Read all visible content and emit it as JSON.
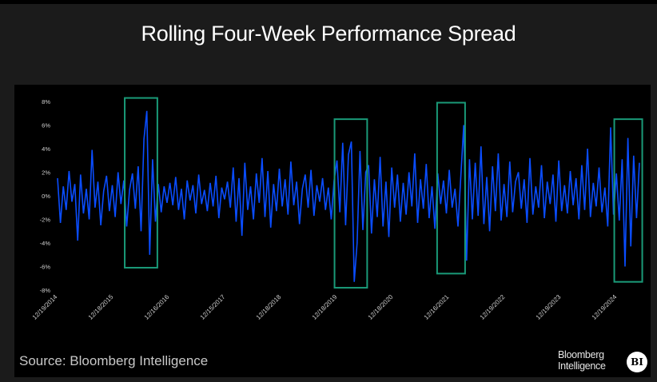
{
  "chart_data": {
    "type": "line",
    "title": "Rolling Four-Week Performance Spread",
    "xlabel": "",
    "ylabel": "",
    "ylim": [
      -8,
      8
    ],
    "xlim": [
      "2014-12-19",
      "2025-05"
    ],
    "grid": false,
    "legend": "none",
    "y_ticks": [
      "8%",
      "6%",
      "4%",
      "2%",
      "0%",
      "-2%",
      "-4%",
      "-6%",
      "-8%"
    ],
    "y_tick_values": [
      8,
      6,
      4,
      2,
      0,
      -2,
      -4,
      -6,
      -8
    ],
    "x_ticks": [
      "12/19/2014",
      "12/18/2015",
      "12/16/2016",
      "12/15/2017",
      "12/18/2018",
      "12/18/2019",
      "12/18/2020",
      "12/16/2021",
      "12/19/2022",
      "12/19/2023",
      "12/19/2024"
    ],
    "series": [
      {
        "color": "#0a4dff",
        "values": [
          1.5,
          -2.3,
          0.8,
          -1.2,
          2.1,
          -0.5,
          1.0,
          -3.8,
          1.8,
          -1.5,
          0.6,
          -2.0,
          3.9,
          -1.0,
          1.2,
          -2.5,
          0.4,
          1.7,
          -1.3,
          0.9,
          -1.8,
          2.0,
          -0.7,
          1.3,
          -2.6,
          0.5,
          1.9,
          -1.1,
          2.5,
          -3.0,
          4.8,
          7.2,
          -5.0,
          3.1,
          -2.2,
          1.0,
          -1.4,
          0.8,
          -0.6,
          1.1,
          -0.8,
          1.6,
          -1.2,
          0.6,
          -2.0,
          1.3,
          -0.4,
          0.9,
          -1.5,
          1.8,
          -0.7,
          0.5,
          -1.3,
          1.1,
          -0.9,
          1.7,
          -1.9,
          0.7,
          -0.3,
          1.2,
          -1.0,
          2.4,
          -2.2,
          1.5,
          -3.4,
          2.8,
          -1.2,
          0.8,
          -2.0,
          1.9,
          -0.6,
          3.2,
          -1.8,
          2.1,
          -2.7,
          1.0,
          -1.3,
          2.3,
          -0.9,
          1.4,
          -1.6,
          2.9,
          -0.8,
          1.2,
          -2.4,
          0.6,
          1.8,
          -1.0,
          2.2,
          -1.7,
          0.9,
          -0.5,
          1.5,
          -1.2,
          0.7,
          -2.0,
          1.3,
          3.0,
          -1.4,
          4.5,
          -2.5,
          3.5,
          4.6,
          -7.3,
          -4.0,
          3.8,
          -2.9,
          2.0,
          2.6,
          -3.2,
          1.4,
          -1.8,
          3.3,
          -2.6,
          1.2,
          -3.5,
          2.4,
          -1.0,
          1.8,
          -2.2,
          1.1,
          -1.6,
          2.0,
          -0.9,
          3.6,
          -2.3,
          1.4,
          -1.1,
          2.7,
          -1.9,
          0.8,
          -2.8,
          1.9,
          -0.7,
          1.3,
          -1.5,
          2.2,
          -1.0,
          0.6,
          -2.6,
          1.7,
          6.0,
          -5.5,
          3.1,
          -2.0,
          2.8,
          -1.7,
          4.2,
          -2.4,
          1.6,
          -3.0,
          2.5,
          -1.3,
          3.6,
          -2.1,
          1.0,
          -1.8,
          2.9,
          -1.4,
          1.2,
          2.0,
          -1.1,
          1.4,
          -2.3,
          3.2,
          -1.6,
          0.8,
          -1.0,
          2.6,
          -1.9,
          1.2,
          -0.7,
          1.8,
          -2.2,
          3.0,
          -1.3,
          0.9,
          -1.5,
          2.1,
          -0.8,
          1.5,
          -2.0,
          2.6,
          -1.2,
          4.0,
          -1.8,
          1.1,
          -0.9,
          2.4,
          -1.4,
          0.7,
          -2.6,
          5.8,
          -1.6,
          1.9,
          -2.1,
          3.1,
          -6.0,
          4.9,
          -4.3,
          3.4,
          -1.9,
          2.8
        ]
      }
    ],
    "highlights": [
      {
        "x": [
          "2016-03",
          "2016-10"
        ],
        "y": [
          -6.1,
          8.3
        ]
      },
      {
        "x": [
          "2019-12",
          "2020-07"
        ],
        "y": [
          -7.8,
          6.5
        ]
      },
      {
        "x": [
          "2021-10",
          "2022-04"
        ],
        "y": [
          -6.6,
          7.9
        ]
      },
      {
        "x": [
          "2024-12",
          "2025-06"
        ],
        "y": [
          -7.3,
          6.5
        ]
      }
    ],
    "highlight_color": "#1a9a78"
  },
  "source": "Source: Bloomberg Intelligence",
  "logo": {
    "line1": "Bloomberg",
    "line2": "Intelligence",
    "badge": "BI"
  }
}
